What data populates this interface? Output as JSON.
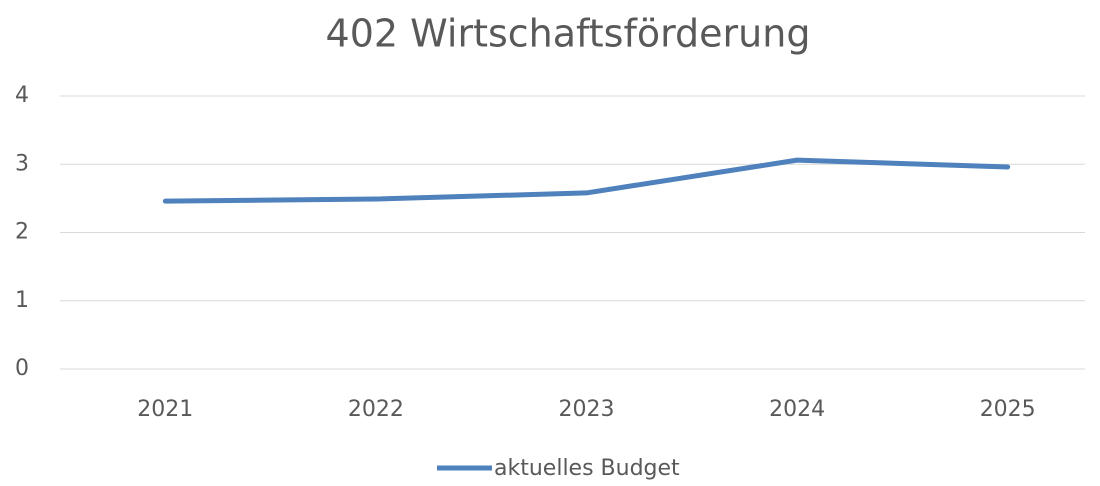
{
  "chart_data": {
    "type": "line",
    "title": "402 Wirtschaftsförderung",
    "categories": [
      "2021",
      "2022",
      "2023",
      "2024",
      "2025"
    ],
    "series": [
      {
        "name": "aktuelles Budget",
        "color": "#4f81bd",
        "values": [
          2.46,
          2.49,
          2.58,
          3.06,
          2.96
        ]
      }
    ],
    "ylim": [
      0,
      4
    ],
    "yticks": [
      0,
      1,
      2,
      3,
      4
    ],
    "grid": true,
    "legend": "bottom"
  }
}
